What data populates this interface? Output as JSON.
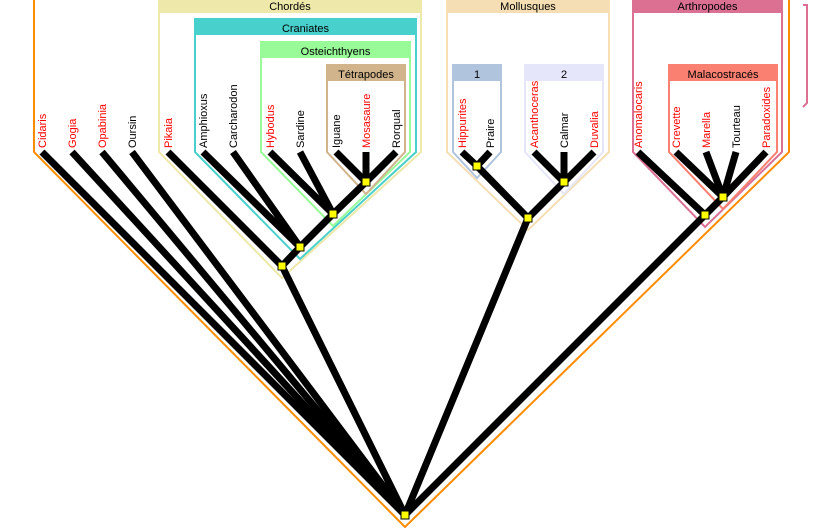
{
  "colors": {
    "extinct": "#ff0000",
    "extant": "#000000",
    "branch": "#000000",
    "node": "#ffff00",
    "outer": "#ff8c00",
    "side_bracket": "#db7093"
  },
  "leaves": [
    {
      "id": "cidaris",
      "label": "Cidaris",
      "extinct": true
    },
    {
      "id": "gogia",
      "label": "Gogia",
      "extinct": true
    },
    {
      "id": "opabinia",
      "label": "Opabinia",
      "extinct": true
    },
    {
      "id": "oursin",
      "label": "Oursin",
      "extinct": false
    },
    {
      "id": "pikaia",
      "label": "Pikaia",
      "extinct": true
    },
    {
      "id": "amphioxus",
      "label": "Amphioxus",
      "extinct": false
    },
    {
      "id": "carcharodon",
      "label": "Carcharodon",
      "extinct": false
    },
    {
      "id": "hybodus",
      "label": "Hybodus",
      "extinct": true
    },
    {
      "id": "sardine",
      "label": "Sardine",
      "extinct": false
    },
    {
      "id": "iguane",
      "label": "Iguane",
      "extinct": false
    },
    {
      "id": "mosasaure",
      "label": "Mosasaure",
      "extinct": true
    },
    {
      "id": "rorqual",
      "label": "Rorqual",
      "extinct": false
    },
    {
      "id": "hippurites",
      "label": "Hippurites",
      "extinct": true
    },
    {
      "id": "praire",
      "label": "Praire",
      "extinct": false
    },
    {
      "id": "acanthoceras",
      "label": "Acanthoceras",
      "extinct": true
    },
    {
      "id": "calmar",
      "label": "Calmar",
      "extinct": false
    },
    {
      "id": "duvalia",
      "label": "Duvalia",
      "extinct": true
    },
    {
      "id": "anomalocaris",
      "label": "Anomalocaris",
      "extinct": true
    },
    {
      "id": "crevette",
      "label": "Crevette",
      "extinct": true
    },
    {
      "id": "marella",
      "label": "Marella",
      "extinct": true
    },
    {
      "id": "tourteau",
      "label": "Tourteau",
      "extinct": false
    },
    {
      "id": "paradoxides",
      "label": "Paradoxides",
      "extinct": true
    }
  ],
  "clades": [
    {
      "id": "root",
      "label": "",
      "color": "#ff8c00",
      "parent": null,
      "children": [
        "cidaris",
        "gogia",
        "opabinia",
        "oursin",
        "chordes",
        "mollusques",
        "arthropodes"
      ]
    },
    {
      "id": "chordes",
      "label": "Chordés",
      "color": "#eee8aa",
      "parent": "root",
      "children": [
        "pikaia",
        "craniates"
      ]
    },
    {
      "id": "craniates",
      "label": "Craniates",
      "color": "#48d1cc",
      "parent": "chordes",
      "children": [
        "amphioxus",
        "carcharodon",
        "osteichthyens"
      ]
    },
    {
      "id": "osteichthyens",
      "label": "Osteichthyens",
      "color": "#98fb98",
      "parent": "craniates",
      "children": [
        "hybodus",
        "sardine",
        "tetrapodes"
      ]
    },
    {
      "id": "tetrapodes",
      "label": "Tétrapodes",
      "color": "#d2b48c",
      "parent": "osteichthyens",
      "children": [
        "iguane",
        "mosasaure",
        "rorqual"
      ]
    },
    {
      "id": "mollusques",
      "label": "Mollusques",
      "color": "#f5deb3",
      "parent": "root",
      "children": [
        "g1",
        "g2"
      ]
    },
    {
      "id": "g1",
      "label": "1",
      "color": "#b0c4de",
      "parent": "mollusques",
      "children": [
        "hippurites",
        "praire"
      ]
    },
    {
      "id": "g2",
      "label": "2",
      "color": "#e6e6fa",
      "parent": "mollusques",
      "children": [
        "acanthoceras",
        "calmar",
        "duvalia"
      ]
    },
    {
      "id": "arthropodes",
      "label": "Arthropodes",
      "color": "#db7093",
      "parent": "root",
      "children": [
        "anomalocaris",
        "malacostraces"
      ]
    },
    {
      "id": "malacostraces",
      "label": "Malacostracés",
      "color": "#fa8072",
      "parent": "arthropodes",
      "children": [
        "crevette",
        "marella",
        "tourteau",
        "paradoxides"
      ]
    }
  ]
}
